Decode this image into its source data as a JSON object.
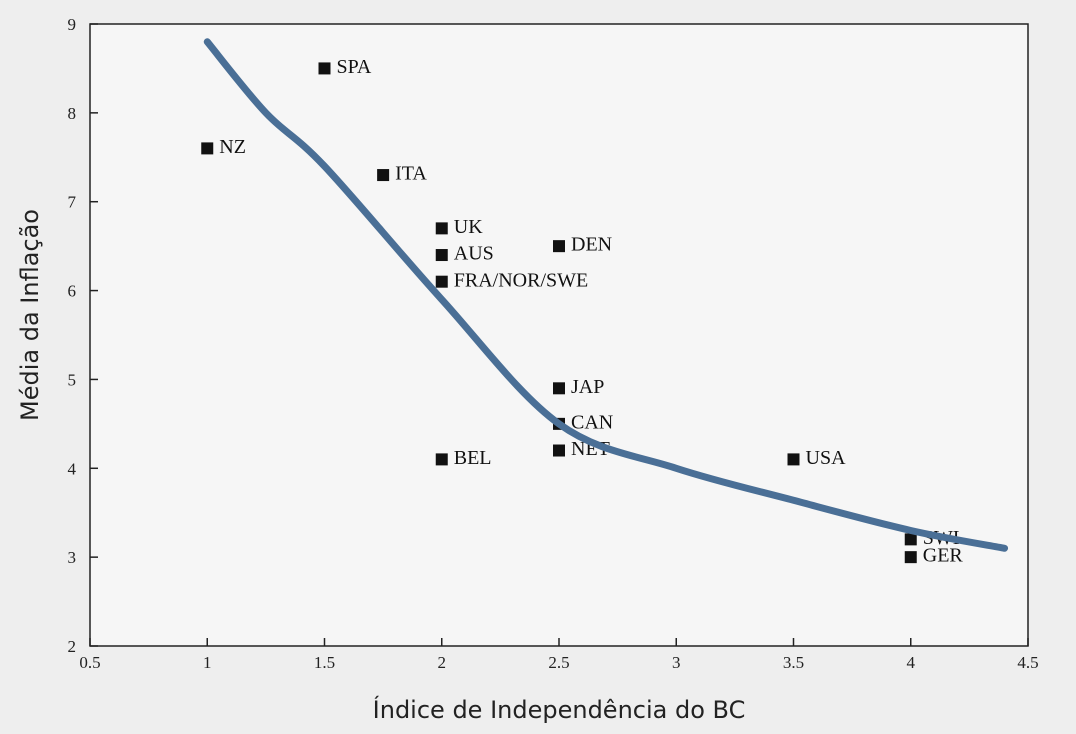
{
  "chart_data": {
    "type": "scatter",
    "xlabel": "Índice de Independência do BC",
    "ylabel": "Média da Inflação",
    "categories": [
      "SPA",
      "NZ",
      "ITA",
      "UK",
      "AUS",
      "FRA/NOR/SWE",
      "DEN",
      "JAP",
      "CAN",
      "NET",
      "BEL",
      "USA",
      "SWI",
      "GER"
    ],
    "x": [
      1.5,
      1,
      1.75,
      2,
      2,
      2,
      2.5,
      2.5,
      2.5,
      2.5,
      2,
      3.5,
      4,
      4
    ],
    "values": [
      8.5,
      7.6,
      7.3,
      6.7,
      6.4,
      6.1,
      6.5,
      4.9,
      4.5,
      4.2,
      4.1,
      4.1,
      3.2,
      3.0
    ],
    "color": "#111111",
    "trend": {
      "color": "#4a6f96",
      "x": [
        1,
        1.25,
        1.5,
        2,
        2.5,
        3,
        3.5,
        4,
        4.4
      ],
      "values": [
        8.8,
        8.0,
        7.4,
        5.9,
        4.5,
        4.0,
        3.64,
        3.3,
        3.1
      ]
    },
    "xlim": [
      0.5,
      4.5
    ],
    "xticks": [
      0.5,
      1,
      1.5,
      2,
      2.5,
      3,
      3.5,
      4,
      4.5
    ],
    "ylim": [
      2,
      9
    ],
    "yticks": [
      2,
      3,
      4,
      5,
      6,
      7,
      8,
      9
    ]
  }
}
